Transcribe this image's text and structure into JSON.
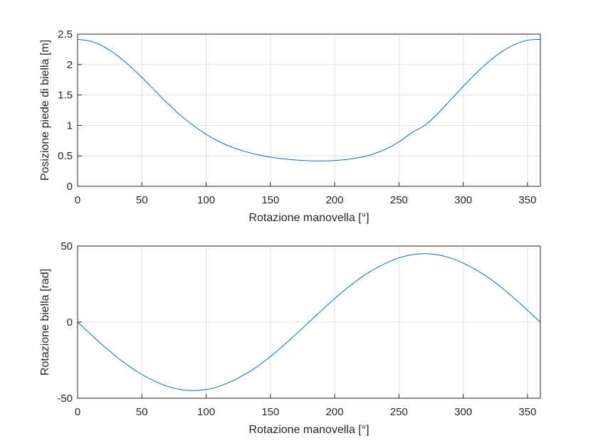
{
  "chart_data": [
    {
      "type": "line",
      "xlabel": "Rotazione manovella [°]",
      "ylabel": "Posizione piede di biella [m]",
      "xlim": [
        0,
        360
      ],
      "ylim": [
        0,
        2.5
      ],
      "xticks": [
        "0",
        "50",
        "100",
        "150",
        "200",
        "250",
        "300",
        "350"
      ],
      "yticks": [
        "0",
        "0.5",
        "1",
        "1.5",
        "2",
        "2.5"
      ],
      "grid": true,
      "series": [
        {
          "color": "#0072bd",
          "x": [
            0,
            10,
            20,
            30,
            40,
            50,
            60,
            70,
            80,
            90,
            100,
            110,
            120,
            130,
            140,
            150,
            160,
            170,
            180,
            190,
            200,
            210,
            220,
            230,
            240,
            250,
            260,
            270,
            280,
            290,
            300,
            310,
            320,
            330,
            340,
            350,
            360
          ],
          "y": [
            2.414,
            2.385,
            2.298,
            2.162,
            1.988,
            1.789,
            1.575,
            1.363,
            1.168,
            1.0,
            0.854,
            0.736,
            0.644,
            0.573,
            0.52,
            0.48,
            0.451,
            0.432,
            0.42,
            0.417,
            0.424,
            0.443,
            0.476,
            0.53,
            0.614,
            0.73,
            0.883,
            1.0,
            1.19,
            1.414,
            1.64,
            1.856,
            2.05,
            2.21,
            2.328,
            2.4,
            2.414
          ]
        }
      ]
    },
    {
      "type": "line",
      "xlabel": "Rotazione manovella [°]",
      "ylabel": "Rotazione biella [rad]",
      "xlim": [
        0,
        360
      ],
      "ylim": [
        -50,
        50
      ],
      "xticks": [
        "0",
        "50",
        "100",
        "150",
        "200",
        "250",
        "300",
        "350"
      ],
      "yticks": [
        "-50",
        "0",
        "50"
      ],
      "grid": true,
      "series": [
        {
          "color": "#0072bd",
          "x": [
            0,
            10,
            20,
            30,
            40,
            50,
            60,
            70,
            80,
            90,
            100,
            110,
            120,
            130,
            140,
            150,
            160,
            170,
            180,
            190,
            200,
            210,
            220,
            230,
            240,
            250,
            260,
            270,
            280,
            290,
            300,
            310,
            320,
            330,
            340,
            350,
            360
          ],
          "y": [
            0,
            -7.8,
            -15.5,
            -22.6,
            -29.0,
            -34.4,
            -38.8,
            -42.2,
            -44.3,
            -45.0,
            -44.3,
            -42.2,
            -38.8,
            -34.4,
            -29.0,
            -22.6,
            -15.5,
            -7.8,
            0,
            7.8,
            15.5,
            22.6,
            29.0,
            34.4,
            38.8,
            42.2,
            44.3,
            45.0,
            44.3,
            42.2,
            38.8,
            34.4,
            29.0,
            22.6,
            15.5,
            7.8,
            0
          ]
        }
      ]
    }
  ]
}
